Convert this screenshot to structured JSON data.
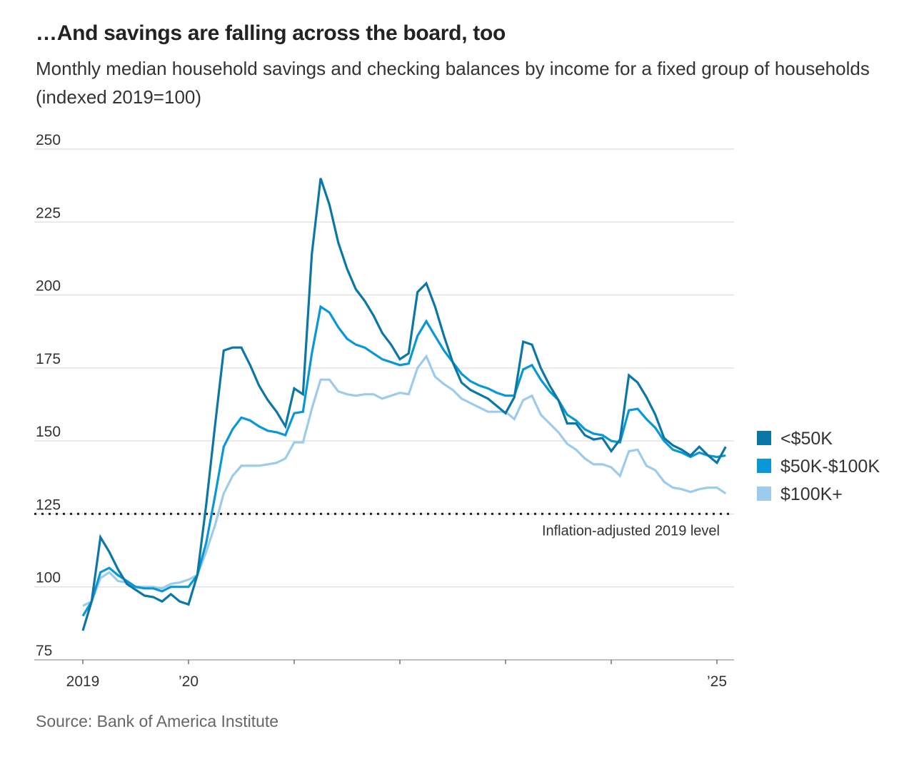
{
  "header": {
    "title": "…And savings are falling across the board, too",
    "subtitle": "Monthly median household savings and checking balances by income for a fixed group of households (indexed 2019=100)"
  },
  "source": "Source: Bank of America Institute",
  "chart_data": {
    "type": "line",
    "title": "…And savings are falling across the board, too",
    "xlabel": "",
    "ylabel": "",
    "x_start": "2019-01",
    "x_frequency": "monthly",
    "x_ticks": [
      "2019",
      "’20",
      "",
      "",
      "",
      "",
      "’25"
    ],
    "ylim": [
      75,
      250
    ],
    "y_ticks": [
      75,
      100,
      125,
      150,
      175,
      200,
      225,
      250
    ],
    "grid": true,
    "legend_position": "right",
    "reference_line": {
      "value": 125,
      "label": "Inflation-adjusted 2019 level",
      "style": "dotted"
    },
    "series": [
      {
        "name": "<$50K",
        "color": "#0b77a8",
        "values": [
          85,
          95,
          117,
          112,
          106,
          101,
          99,
          97,
          96.5,
          95,
          97.5,
          95,
          94,
          104,
          128,
          155,
          181,
          182,
          182,
          176,
          169,
          164,
          160,
          155,
          168,
          166,
          214,
          240,
          231,
          218,
          209,
          202,
          198,
          193,
          187,
          183,
          178,
          180,
          201,
          204,
          196,
          186,
          177,
          170,
          167.5,
          166,
          164.5,
          162,
          159.5,
          165,
          184,
          183,
          175,
          169,
          164,
          156,
          156,
          152,
          150.5,
          151,
          146.5,
          150.5,
          172.5,
          170,
          165,
          159,
          151,
          148.5,
          147,
          145,
          148,
          145,
          142.5,
          148
        ]
      },
      {
        "name": "$50K-$100K",
        "color": "#0898d8",
        "values": [
          90,
          95,
          105,
          106.5,
          104,
          102,
          100,
          99.5,
          99.5,
          98.5,
          100,
          100,
          100,
          104,
          115,
          131,
          148,
          154,
          158,
          157,
          155,
          153.5,
          153,
          152,
          159.5,
          160,
          180,
          196,
          194,
          189,
          185,
          183,
          182,
          180,
          178,
          177,
          176,
          176.5,
          186,
          191,
          186,
          181,
          177,
          173,
          170.5,
          169,
          168,
          166.5,
          165.5,
          165.5,
          174.5,
          176,
          171,
          167,
          164,
          159,
          157,
          154,
          152.5,
          152,
          150,
          149.5,
          160.5,
          161,
          157.5,
          154.5,
          150,
          147,
          146,
          144.5,
          146,
          145,
          144.5,
          145
        ]
      },
      {
        "name": "$100K+",
        "color": "#9ccbec",
        "values": [
          93.5,
          95,
          103,
          105,
          102,
          101.5,
          100,
          100,
          100,
          99.5,
          101,
          101.5,
          102.5,
          104,
          112,
          121,
          132,
          138,
          141.5,
          141.5,
          141.5,
          142,
          142.5,
          144,
          149.5,
          149.5,
          161,
          171,
          171,
          167,
          166,
          165.5,
          166,
          166,
          164.5,
          165.5,
          166.5,
          166,
          175,
          179,
          172,
          169.5,
          167.5,
          164.5,
          163,
          161.5,
          160,
          160,
          160,
          157.5,
          164,
          165.5,
          159,
          156,
          153,
          149,
          147,
          144,
          142,
          142,
          141,
          138,
          146.5,
          147,
          141.5,
          140,
          136,
          134,
          133.5,
          132.5,
          133.5,
          134,
          134,
          132
        ]
      }
    ]
  }
}
